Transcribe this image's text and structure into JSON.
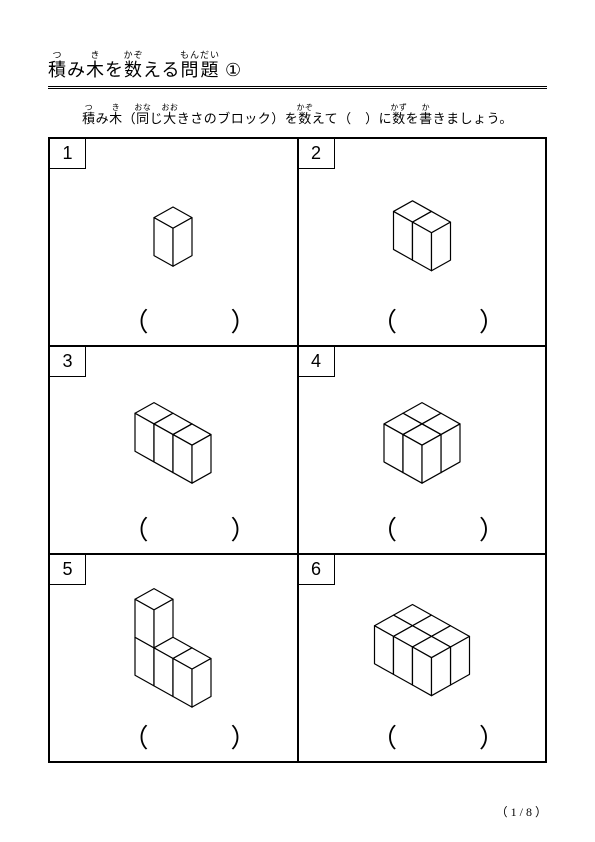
{
  "title_parts": {
    "t1_base": "積",
    "t1_ruby": "つ",
    "t2": "み",
    "t3_base": "木",
    "t3_ruby": "き",
    "t4": "を",
    "t5_base": "数",
    "t5_ruby": "かぞ",
    "t6": "える",
    "t7_base": "問題",
    "t7_ruby": "もんだい",
    "t8": " ①"
  },
  "instruction_parts": {
    "i1_base": "積",
    "i1_ruby": "つ",
    "i2": "み",
    "i3_base": "木",
    "i3_ruby": "き",
    "i4": "（",
    "i5_base": "同",
    "i5_ruby": "おな",
    "i6": "じ",
    "i7_base": "大",
    "i7_ruby": "おお",
    "i8": "きさのブロック）を",
    "i9_base": "数",
    "i9_ruby": "かぞ",
    "i10": "えて（　）に",
    "i11_base": "数",
    "i11_ruby": "かず",
    "i12": "を",
    "i13_base": "書",
    "i13_ruby": "か",
    "i14": "きましょう。"
  },
  "problems": [
    {
      "num": "1",
      "cols": 1,
      "rows": 1,
      "layers": 1
    },
    {
      "num": "2",
      "cols": 2,
      "rows": 1,
      "layers": 1
    },
    {
      "num": "3",
      "cols": 3,
      "rows": 1,
      "layers": 1
    },
    {
      "num": "4",
      "cols": 2,
      "rows": 2,
      "layers": 1
    },
    {
      "num": "5",
      "cols": 3,
      "rows": 1,
      "layers": 1,
      "extra_top": true
    },
    {
      "num": "6",
      "cols": 3,
      "rows": 2,
      "layers": 1
    }
  ],
  "answer_parens": "（　）",
  "page_number": "（ 1 / 8 ）",
  "style": {
    "stroke": "#000000",
    "fill": "#ffffff",
    "stroke_width": 1.2,
    "cube_edge": 38
  }
}
